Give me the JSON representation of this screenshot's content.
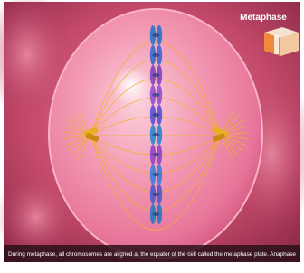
{
  "label": "Metaphase",
  "caption": "During metaphase, all chromosomes are aligned at the equator of the cell called the metaphase plate. Anaphase"
}
